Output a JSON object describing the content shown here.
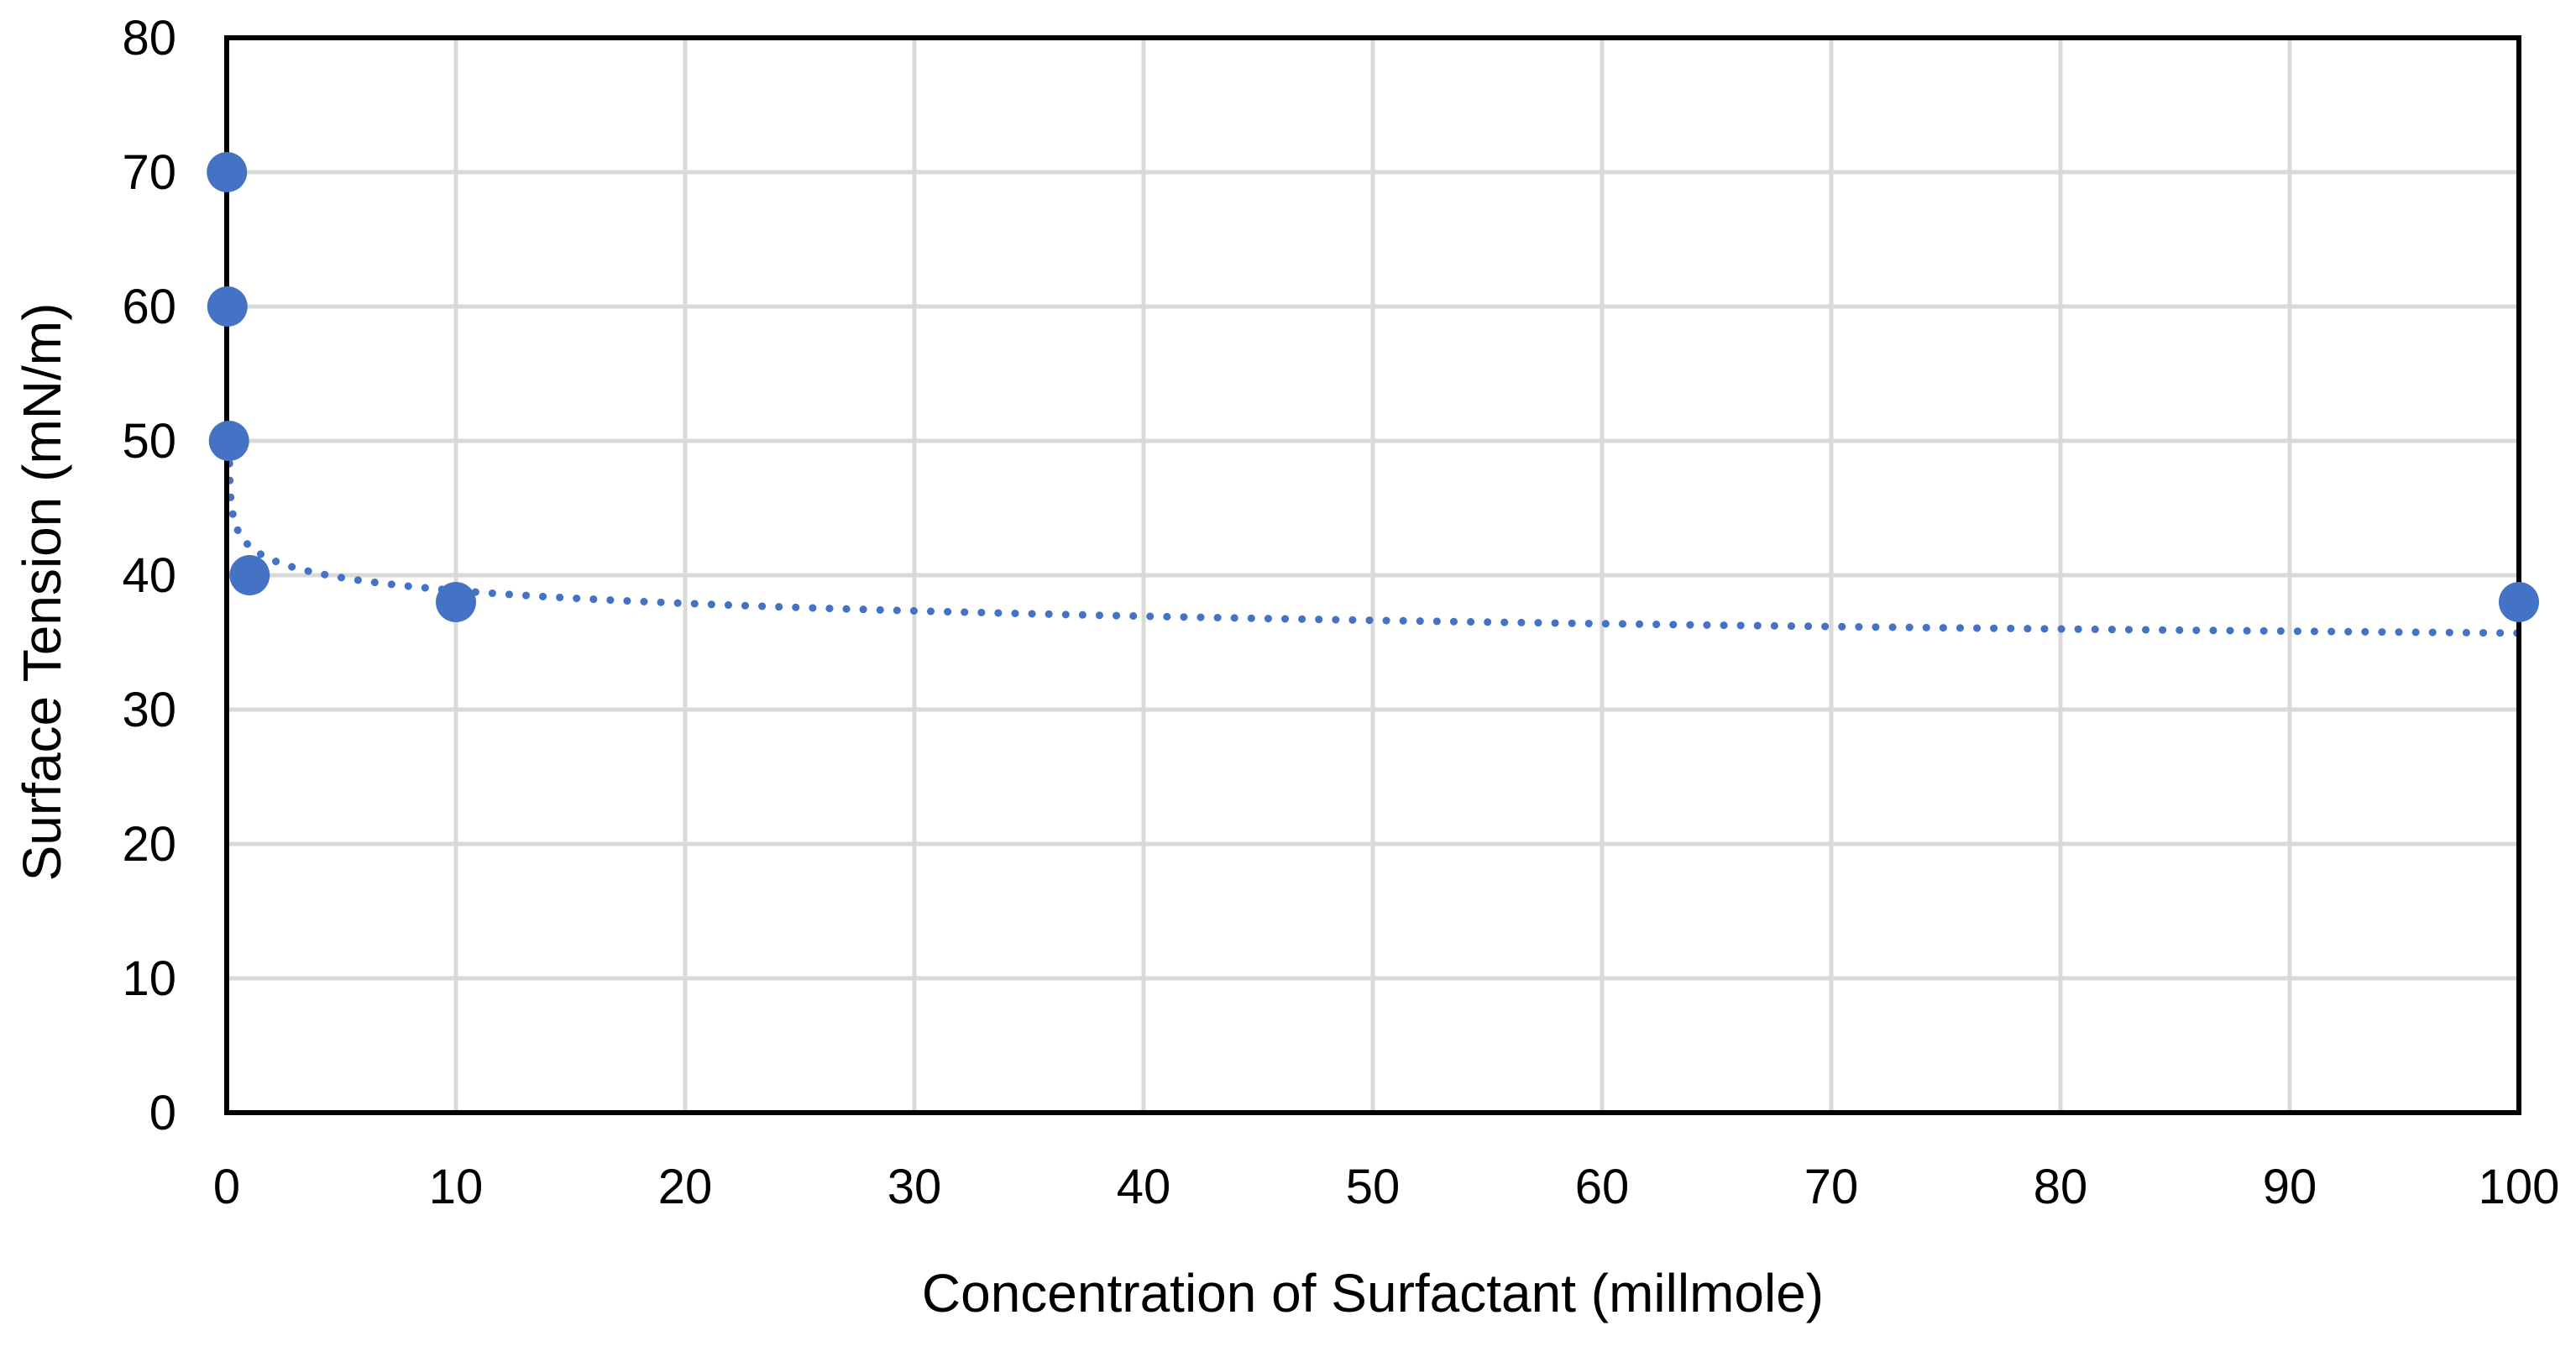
{
  "chart_data": {
    "type": "scatter",
    "title": "",
    "xlabel": "Concentration of Surfactant (millmole)",
    "ylabel": "Surface Tension (mN/m)",
    "xlim": [
      0,
      100
    ],
    "ylim": [
      0,
      80
    ],
    "x_ticks": [
      0,
      10,
      20,
      30,
      40,
      50,
      60,
      70,
      80,
      90,
      100
    ],
    "y_ticks": [
      0,
      10,
      20,
      30,
      40,
      50,
      60,
      70,
      80
    ],
    "x_tick_labels": [
      "0",
      "10",
      "20",
      "30",
      "40",
      "50",
      "60",
      "70",
      "80",
      "90",
      "100"
    ],
    "y_tick_labels": [
      "0",
      "10",
      "20",
      "30",
      "40",
      "50",
      "60",
      "70",
      "80"
    ],
    "grid": true,
    "series": [
      {
        "name": "Surface Tension",
        "x": [
          0.01,
          0.03,
          0.1,
          1,
          10,
          100
        ],
        "y": [
          70,
          60,
          50,
          40,
          38,
          38
        ]
      }
    ],
    "trendline": {
      "type": "logarithmic",
      "style": "dotted",
      "equation_form": "y = a*ln(x) + b",
      "a": -1.37,
      "b": 42.0,
      "x_range": [
        0.01,
        100
      ]
    },
    "colors": {
      "series": "#4472c4",
      "grid": "#d9d9d9",
      "frame": "#000000"
    }
  }
}
